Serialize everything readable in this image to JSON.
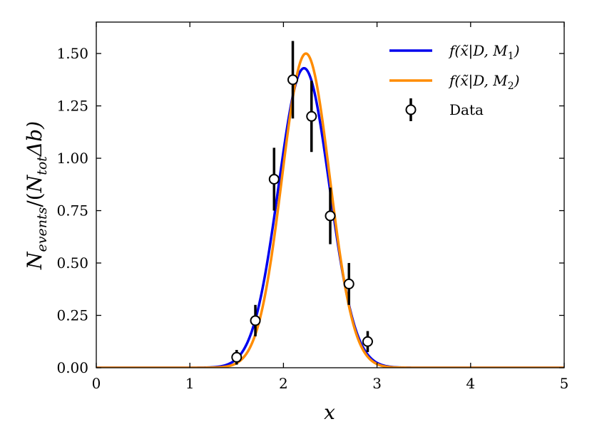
{
  "chart_data": {
    "type": "line",
    "title": "",
    "xlabel": "x",
    "ylabel_parts": {
      "n1": "N",
      "sub1": "events",
      "mid": "/(",
      "n2": "N",
      "sub2": "tot",
      "tail": "Δb)"
    },
    "xlim": [
      0,
      5
    ],
    "ylim": [
      0,
      1.65
    ],
    "xticks": [
      "0",
      "1",
      "2",
      "3",
      "4",
      "5"
    ],
    "yticks": [
      "0.00",
      "0.25",
      "0.50",
      "0.75",
      "1.00",
      "1.25",
      "1.50"
    ],
    "grid": false,
    "legend_position": "top-right",
    "series": [
      {
        "name": "f(x̃|D, M1)",
        "kind": "line",
        "color": "#0000ee",
        "model": {
          "amplitude": 1.43,
          "mean": 2.22,
          "sigma": 0.272
        }
      },
      {
        "name": "f(x̃|D, M2)",
        "kind": "line",
        "color": "#ff8c00",
        "model": {
          "amplitude": 1.5,
          "mean": 2.24,
          "sigma": 0.255
        }
      },
      {
        "name": "Data",
        "kind": "errorbar",
        "color": "#000000",
        "x": [
          1.5,
          1.7,
          1.9,
          2.1,
          2.3,
          2.5,
          2.7,
          2.9
        ],
        "y": [
          0.05,
          0.225,
          0.9,
          1.375,
          1.2,
          0.725,
          0.4,
          0.125
        ],
        "yerr": [
          0.035,
          0.075,
          0.15,
          0.185,
          0.17,
          0.135,
          0.1,
          0.05
        ]
      }
    ],
    "legend": {
      "m1": {
        "pre": "f(",
        "xt": "x̃",
        "mid": "|D, M",
        "sub": "1",
        "post": ")"
      },
      "m2": {
        "pre": "f(",
        "xt": "x̃",
        "mid": "|D, M",
        "sub": "2",
        "post": ")"
      },
      "data": "Data"
    }
  }
}
